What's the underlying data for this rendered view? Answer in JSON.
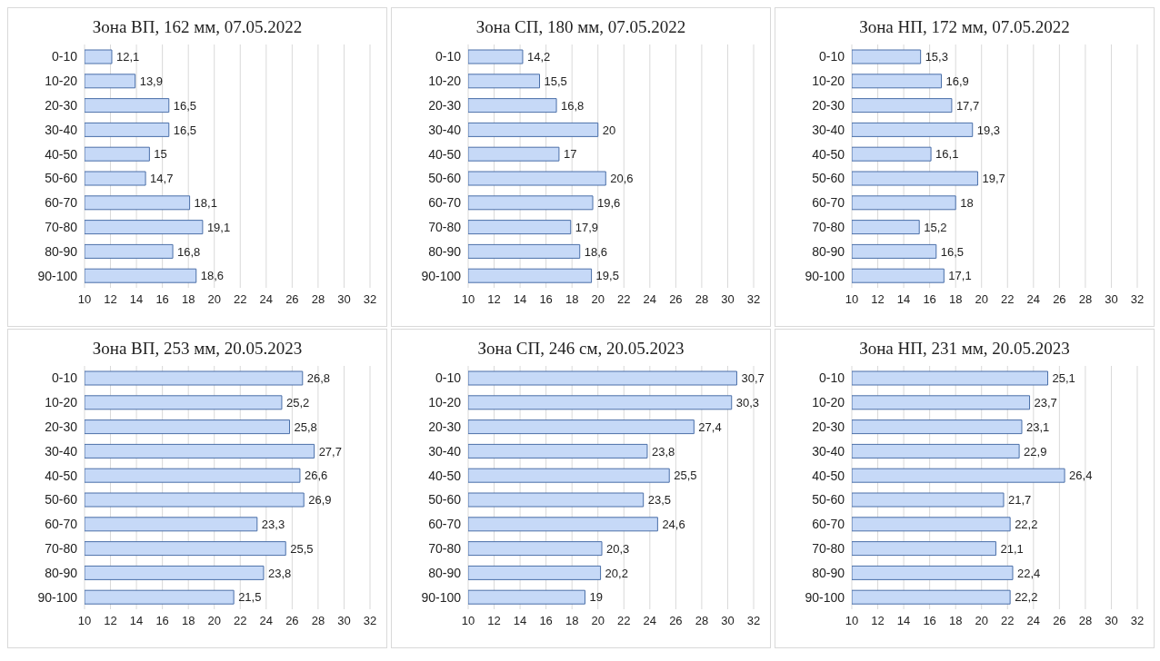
{
  "chart_data": [
    {
      "type": "bar",
      "orientation": "horizontal",
      "title": "Зона ВП, 162 мм, 07.05.2022",
      "categories": [
        "0-10",
        "10-20",
        "20-30",
        "30-40",
        "40-50",
        "50-60",
        "60-70",
        "70-80",
        "80-90",
        "90-100"
      ],
      "values": [
        12.1,
        13.9,
        16.5,
        16.5,
        15,
        14.7,
        18.1,
        19.1,
        16.8,
        18.6
      ],
      "value_labels": [
        "12,1",
        "13,9",
        "16,5",
        "16,5",
        "15",
        "14,7",
        "18,1",
        "19,1",
        "16,8",
        "18,6"
      ],
      "color": "#c6d9f7",
      "xlim": [
        10,
        32
      ],
      "xticks": [
        10,
        12,
        14,
        16,
        18,
        20,
        22,
        24,
        26,
        28,
        30,
        32
      ],
      "grid": "x",
      "legend": false
    },
    {
      "type": "bar",
      "orientation": "horizontal",
      "title": "Зона СП, 180 мм, 07.05.2022",
      "categories": [
        "0-10",
        "10-20",
        "20-30",
        "30-40",
        "40-50",
        "50-60",
        "60-70",
        "70-80",
        "80-90",
        "90-100"
      ],
      "values": [
        14.2,
        15.5,
        16.8,
        20,
        17,
        20.6,
        19.6,
        17.9,
        18.6,
        19.5
      ],
      "value_labels": [
        "14,2",
        "15,5",
        "16,8",
        "20",
        "17",
        "20,6",
        "19,6",
        "17,9",
        "18,6",
        "19,5"
      ],
      "color": "#c6d9f7",
      "xlim": [
        10,
        32
      ],
      "xticks": [
        10,
        12,
        14,
        16,
        18,
        20,
        22,
        24,
        26,
        28,
        30,
        32
      ],
      "grid": "x",
      "legend": false
    },
    {
      "type": "bar",
      "orientation": "horizontal",
      "title": "Зона НП, 172 мм, 07.05.2022",
      "categories": [
        "0-10",
        "10-20",
        "20-30",
        "30-40",
        "40-50",
        "50-60",
        "60-70",
        "70-80",
        "80-90",
        "90-100"
      ],
      "values": [
        15.3,
        16.9,
        17.7,
        19.3,
        16.1,
        19.7,
        18,
        15.2,
        16.5,
        17.1
      ],
      "value_labels": [
        "15,3",
        "16,9",
        "17,7",
        "19,3",
        "16,1",
        "19,7",
        "18",
        "15,2",
        "16,5",
        "17,1"
      ],
      "color": "#c6d9f7",
      "xlim": [
        10,
        32
      ],
      "xticks": [
        10,
        12,
        14,
        16,
        18,
        20,
        22,
        24,
        26,
        28,
        30,
        32
      ],
      "grid": "x",
      "legend": false
    },
    {
      "type": "bar",
      "orientation": "horizontal",
      "title": "Зона ВП, 253 мм, 20.05.2023",
      "categories": [
        "0-10",
        "10-20",
        "20-30",
        "30-40",
        "40-50",
        "50-60",
        "60-70",
        "70-80",
        "80-90",
        "90-100"
      ],
      "values": [
        26.8,
        25.2,
        25.8,
        27.7,
        26.6,
        26.9,
        23.3,
        25.5,
        23.8,
        21.5
      ],
      "value_labels": [
        "26,8",
        "25,2",
        "25,8",
        "27,7",
        "26,6",
        "26,9",
        "23,3",
        "25,5",
        "23,8",
        "21,5"
      ],
      "color": "#c6d9f7",
      "xlim": [
        10,
        32
      ],
      "xticks": [
        10,
        12,
        14,
        16,
        18,
        20,
        22,
        24,
        26,
        28,
        30,
        32
      ],
      "grid": "x",
      "legend": false
    },
    {
      "type": "bar",
      "orientation": "horizontal",
      "title": "Зона СП, 246 см, 20.05.2023",
      "categories": [
        "0-10",
        "10-20",
        "20-30",
        "30-40",
        "40-50",
        "50-60",
        "60-70",
        "70-80",
        "80-90",
        "90-100"
      ],
      "values": [
        30.7,
        30.3,
        27.4,
        23.8,
        25.5,
        23.5,
        24.6,
        20.3,
        20.2,
        19
      ],
      "value_labels": [
        "30,7",
        "30,3",
        "27,4",
        "23,8",
        "25,5",
        "23,5",
        "24,6",
        "20,3",
        "20,2",
        "19"
      ],
      "color": "#c6d9f7",
      "xlim": [
        10,
        32
      ],
      "xticks": [
        10,
        12,
        14,
        16,
        18,
        20,
        22,
        24,
        26,
        28,
        30,
        32
      ],
      "grid": "x",
      "legend": false
    },
    {
      "type": "bar",
      "orientation": "horizontal",
      "title": "Зона НП, 231 мм, 20.05.2023",
      "categories": [
        "0-10",
        "10-20",
        "20-30",
        "30-40",
        "40-50",
        "50-60",
        "60-70",
        "70-80",
        "80-90",
        "90-100"
      ],
      "values": [
        25.1,
        23.7,
        23.1,
        22.9,
        26.4,
        21.7,
        22.2,
        21.1,
        22.4,
        22.2
      ],
      "value_labels": [
        "25,1",
        "23,7",
        "23,1",
        "22,9",
        "26,4",
        "21,7",
        "22,2",
        "21,1",
        "22,4",
        "22,2"
      ],
      "color": "#c6d9f7",
      "xlim": [
        10,
        32
      ],
      "xticks": [
        10,
        12,
        14,
        16,
        18,
        20,
        22,
        24,
        26,
        28,
        30,
        32
      ],
      "grid": "x",
      "legend": false
    }
  ]
}
